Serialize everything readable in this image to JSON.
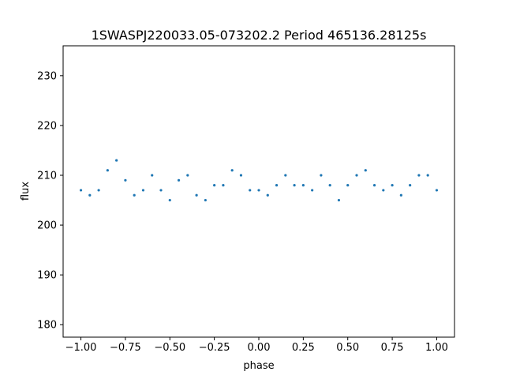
{
  "chart_data": {
    "type": "scatter",
    "title": "1SWASPJ220033.05-073202.2 Period 465136.28125s",
    "xlabel": "phase",
    "ylabel": "flux",
    "xlim": [
      -1.1,
      1.1
    ],
    "ylim": [
      177.5,
      236
    ],
    "xticks": [
      -1.0,
      -0.75,
      -0.5,
      -0.25,
      0.0,
      0.25,
      0.5,
      0.75,
      1.0
    ],
    "xtick_labels": [
      "−1.00",
      "−0.75",
      "−0.50",
      "−0.25",
      "0.00",
      "0.25",
      "0.50",
      "0.75",
      "1.00"
    ],
    "yticks": [
      180,
      190,
      200,
      210,
      220,
      230
    ],
    "ytick_labels": [
      "180",
      "190",
      "200",
      "210",
      "220",
      "230"
    ],
    "grid": false,
    "legend": "none",
    "marker_color": "#1f77b4",
    "series": [
      {
        "x": [
          -1.0,
          -0.95,
          -0.9,
          -0.85,
          -0.8,
          -0.75,
          -0.7,
          -0.65,
          -0.6,
          -0.55,
          -0.5,
          -0.45,
          -0.4,
          -0.35,
          -0.3,
          -0.25,
          -0.2,
          -0.15,
          -0.1,
          -0.05,
          0.0,
          0.05,
          0.1,
          0.15,
          0.2,
          0.25,
          0.3,
          0.35,
          0.4,
          0.45,
          0.5,
          0.55,
          0.6,
          0.65,
          0.7,
          0.75,
          0.8,
          0.85,
          0.9,
          0.95,
          1.0
        ],
        "y": [
          207,
          206,
          207,
          211,
          213,
          209,
          206,
          207,
          210,
          207,
          205,
          209,
          210,
          206,
          205,
          208,
          208,
          211,
          210,
          207,
          207,
          206,
          208,
          210,
          208,
          208,
          207,
          210,
          208,
          205,
          208,
          210,
          211,
          208,
          207,
          208,
          206,
          208,
          210,
          210,
          207
        ]
      }
    ]
  }
}
